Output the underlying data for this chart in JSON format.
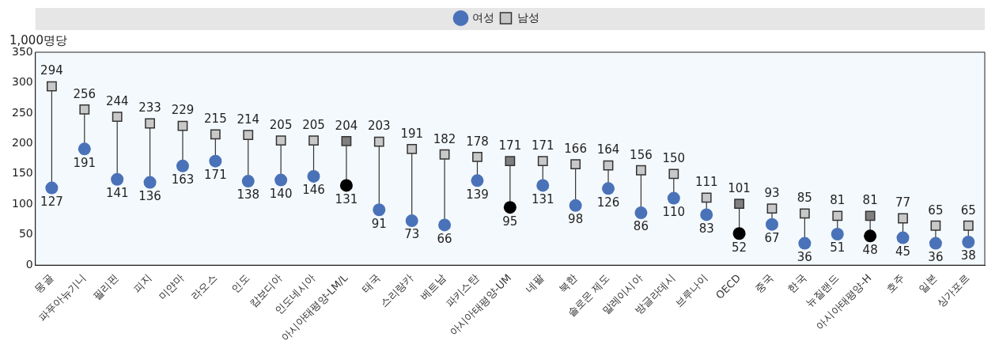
{
  "chart_data": {
    "type": "scatter",
    "ylabel": "1,000명당",
    "categories": [
      "몽골",
      "파푸아뉴기니",
      "필리핀",
      "피지",
      "미얀마",
      "라오스",
      "인도",
      "캄보디아",
      "인도네시아",
      "아시아태평양-LM/L",
      "태국",
      "스리랑카",
      "베트남",
      "파키스탄",
      "아시아태평양-UM",
      "네팔",
      "북한",
      "솔로몬 제도",
      "말레이시아",
      "방글라데시",
      "브루나이",
      "OECD",
      "중국",
      "한국",
      "뉴질랜드",
      "아시아태평양-H",
      "호주",
      "일본",
      "싱가포르"
    ],
    "series": [
      {
        "name": "여성",
        "marker": "circle",
        "color": "#4a72b8",
        "colors": [
          "#4a72b8",
          "#4a72b8",
          "#4a72b8",
          "#4a72b8",
          "#4a72b8",
          "#4a72b8",
          "#4a72b8",
          "#4a72b8",
          "#4a72b8",
          "#000000",
          "#4a72b8",
          "#4a72b8",
          "#4a72b8",
          "#4a72b8",
          "#000000",
          "#4a72b8",
          "#4a72b8",
          "#4a72b8",
          "#4a72b8",
          "#4a72b8",
          "#4a72b8",
          "#000000",
          "#4a72b8",
          "#4a72b8",
          "#4a72b8",
          "#000000",
          "#4a72b8",
          "#4a72b8",
          "#4a72b8"
        ],
        "values": [
          127,
          191,
          141,
          136,
          163,
          171,
          138,
          140,
          146,
          131,
          91,
          73,
          66,
          139,
          95,
          131,
          98,
          126,
          86,
          110,
          83,
          52,
          67,
          36,
          51,
          48,
          45,
          36,
          38
        ]
      },
      {
        "name": "남성",
        "marker": "square",
        "color": "#c8c8c8",
        "colors": [
          "#c8c8c8",
          "#c8c8c8",
          "#c8c8c8",
          "#c8c8c8",
          "#c8c8c8",
          "#c8c8c8",
          "#c8c8c8",
          "#c8c8c8",
          "#c8c8c8",
          "#7f7f7f",
          "#c8c8c8",
          "#c8c8c8",
          "#c8c8c8",
          "#c8c8c8",
          "#7f7f7f",
          "#c8c8c8",
          "#c8c8c8",
          "#c8c8c8",
          "#c8c8c8",
          "#c8c8c8",
          "#c8c8c8",
          "#7f7f7f",
          "#c8c8c8",
          "#c8c8c8",
          "#c8c8c8",
          "#7f7f7f",
          "#c8c8c8",
          "#c8c8c8",
          "#c8c8c8"
        ],
        "values": [
          294,
          256,
          244,
          233,
          229,
          215,
          214,
          205,
          205,
          204,
          203,
          191,
          182,
          178,
          171,
          171,
          166,
          164,
          156,
          150,
          111,
          101,
          93,
          85,
          81,
          81,
          77,
          65,
          65
        ]
      }
    ],
    "ylim": [
      0,
      350
    ],
    "yticks": [
      0,
      50,
      100,
      150,
      200,
      250,
      300,
      350
    ],
    "grid": false,
    "legend": "top",
    "data_labels": true
  }
}
